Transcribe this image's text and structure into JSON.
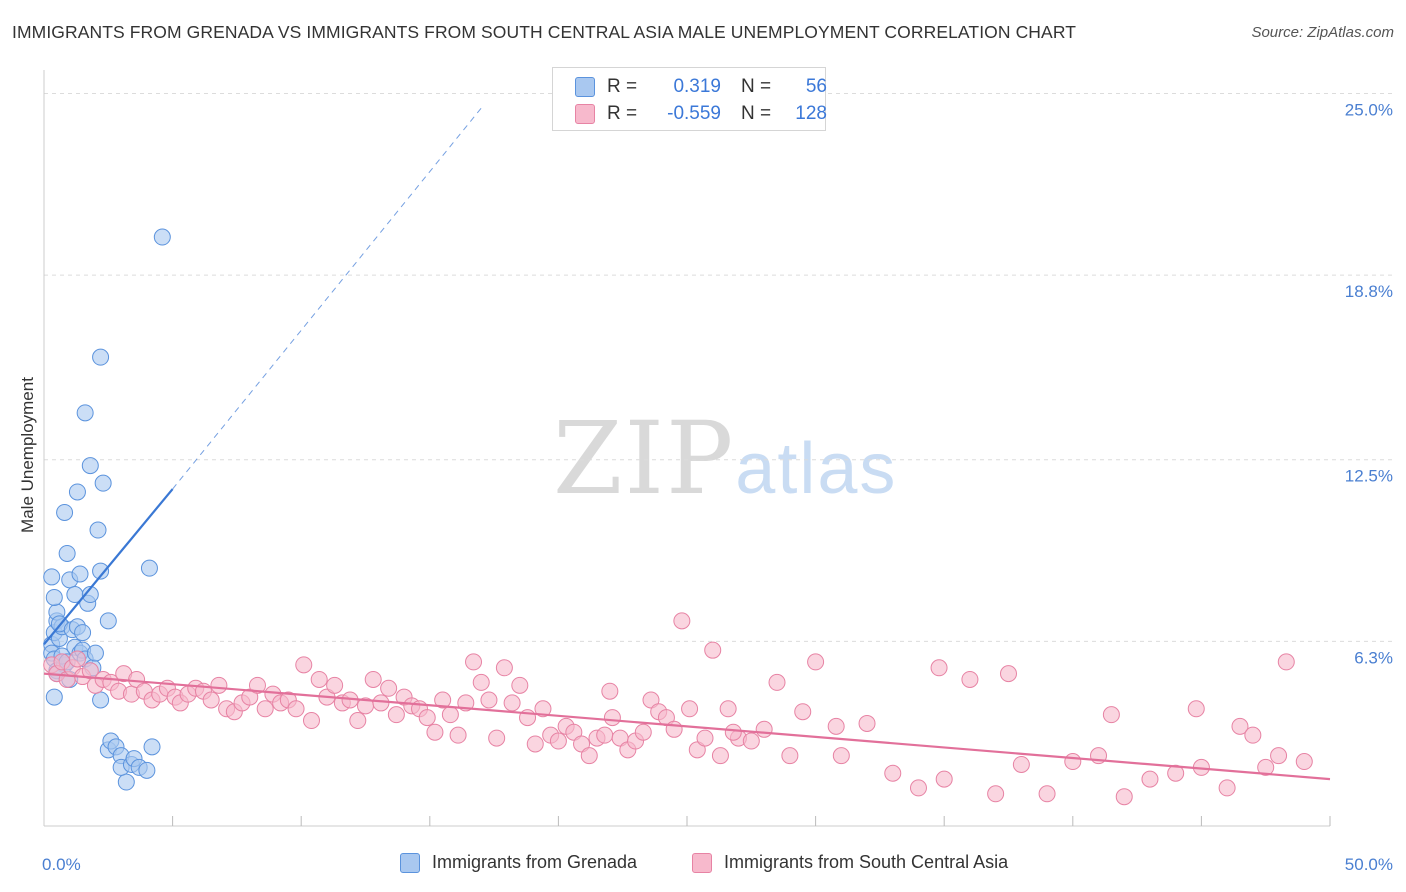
{
  "title": "IMMIGRANTS FROM GRENADA VS IMMIGRANTS FROM SOUTH CENTRAL ASIA MALE UNEMPLOYMENT CORRELATION CHART",
  "source": "Source: ZipAtlas.com",
  "watermark": {
    "zip": "ZIP",
    "atlas": "atlas"
  },
  "legend": {
    "rows": [
      {
        "r_label": "R =",
        "r_value": "0.319",
        "n_label": "N =",
        "n_value": "56",
        "color": "#a9c8f0"
      },
      {
        "r_label": "R =",
        "r_value": "-0.559",
        "n_label": "N =",
        "n_value": "128",
        "color": "#f7b9cc"
      }
    ]
  },
  "bottom_legend": [
    {
      "label": "Immigrants from Grenada",
      "color": "#a9c8f0"
    },
    {
      "label": "Immigrants from South Central Asia",
      "color": "#f7b9cc"
    }
  ],
  "chart_data": {
    "type": "scatter",
    "title": "IMMIGRANTS FROM GRENADA VS IMMIGRANTS FROM SOUTH CENTRAL ASIA MALE UNEMPLOYMENT CORRELATION CHART",
    "xlabel": "",
    "ylabel": "Male Unemployment",
    "xlim": [
      0,
      50
    ],
    "ylim": [
      0,
      25.8
    ],
    "x_tick_labels": [
      {
        "value": 0,
        "label": "0.0%"
      },
      {
        "value": 50,
        "label": "50.0%"
      }
    ],
    "y_tick_labels": [
      {
        "value": 6.3,
        "label": "6.3%"
      },
      {
        "value": 12.5,
        "label": "12.5%"
      },
      {
        "value": 18.8,
        "label": "18.8%"
      },
      {
        "value": 25.0,
        "label": "25.0%"
      }
    ],
    "grid": true,
    "legend_position": "top-center",
    "series": [
      {
        "name": "Immigrants from Grenada",
        "color": "#a9c8f0",
        "stroke": "#5b93dd",
        "trend": {
          "x": [
            0.0,
            5.0
          ],
          "y": [
            6.2,
            11.5
          ],
          "extend_to": [
            17.0,
            24.5
          ],
          "color": "#3a78d4"
        },
        "points": [
          [
            0.3,
            6.2
          ],
          [
            0.3,
            5.9
          ],
          [
            0.4,
            6.6
          ],
          [
            0.5,
            7.0
          ],
          [
            0.4,
            5.7
          ],
          [
            0.6,
            6.4
          ],
          [
            0.5,
            5.3
          ],
          [
            0.7,
            6.8
          ],
          [
            0.8,
            5.5
          ],
          [
            0.3,
            8.5
          ],
          [
            0.5,
            7.3
          ],
          [
            0.4,
            7.8
          ],
          [
            0.6,
            6.9
          ],
          [
            0.9,
            9.3
          ],
          [
            0.8,
            10.7
          ],
          [
            1.0,
            8.4
          ],
          [
            1.1,
            6.7
          ],
          [
            1.2,
            7.9
          ],
          [
            1.3,
            6.8
          ],
          [
            1.4,
            8.6
          ],
          [
            0.7,
            5.8
          ],
          [
            0.5,
            5.2
          ],
          [
            0.9,
            5.6
          ],
          [
            1.0,
            5.0
          ],
          [
            1.2,
            6.1
          ],
          [
            1.4,
            5.9
          ],
          [
            1.5,
            6.0
          ],
          [
            1.6,
            5.7
          ],
          [
            0.4,
            4.4
          ],
          [
            1.7,
            7.6
          ],
          [
            1.8,
            7.9
          ],
          [
            1.5,
            6.6
          ],
          [
            1.9,
            5.4
          ],
          [
            2.0,
            5.9
          ],
          [
            2.2,
            4.3
          ],
          [
            1.3,
            11.4
          ],
          [
            1.6,
            14.1
          ],
          [
            1.8,
            12.3
          ],
          [
            2.1,
            10.1
          ],
          [
            2.5,
            2.6
          ],
          [
            2.6,
            2.9
          ],
          [
            2.8,
            2.7
          ],
          [
            3.0,
            2.4
          ],
          [
            3.2,
            1.5
          ],
          [
            3.0,
            2.0
          ],
          [
            3.4,
            2.1
          ],
          [
            3.5,
            2.3
          ],
          [
            3.7,
            2.0
          ],
          [
            4.0,
            1.9
          ],
          [
            4.2,
            2.7
          ],
          [
            2.2,
            8.7
          ],
          [
            2.3,
            11.7
          ],
          [
            2.2,
            16.0
          ],
          [
            4.1,
            8.8
          ],
          [
            4.6,
            20.1
          ],
          [
            2.5,
            7.0
          ]
        ]
      },
      {
        "name": "Immigrants from South Central Asia",
        "color": "#f7b9cc",
        "stroke": "#e783a4",
        "trend": {
          "x": [
            0.0,
            50.0
          ],
          "y": [
            5.2,
            1.6
          ],
          "color": "#e2709a"
        },
        "points": [
          [
            0.3,
            5.5
          ],
          [
            0.5,
            5.2
          ],
          [
            0.7,
            5.6
          ],
          [
            0.9,
            5.0
          ],
          [
            1.1,
            5.4
          ],
          [
            1.3,
            5.7
          ],
          [
            1.5,
            5.1
          ],
          [
            1.8,
            5.3
          ],
          [
            2.0,
            4.8
          ],
          [
            2.3,
            5.0
          ],
          [
            2.6,
            4.9
          ],
          [
            2.9,
            4.6
          ],
          [
            3.1,
            5.2
          ],
          [
            3.4,
            4.5
          ],
          [
            3.6,
            5.0
          ],
          [
            3.9,
            4.6
          ],
          [
            4.2,
            4.3
          ],
          [
            4.5,
            4.5
          ],
          [
            4.8,
            4.7
          ],
          [
            5.1,
            4.4
          ],
          [
            5.3,
            4.2
          ],
          [
            5.6,
            4.5
          ],
          [
            5.9,
            4.7
          ],
          [
            6.2,
            4.6
          ],
          [
            6.5,
            4.3
          ],
          [
            6.8,
            4.8
          ],
          [
            7.1,
            4.0
          ],
          [
            7.4,
            3.9
          ],
          [
            7.7,
            4.2
          ],
          [
            8.0,
            4.4
          ],
          [
            8.3,
            4.8
          ],
          [
            8.6,
            4.0
          ],
          [
            8.9,
            4.5
          ],
          [
            9.2,
            4.2
          ],
          [
            9.5,
            4.3
          ],
          [
            9.8,
            4.0
          ],
          [
            10.1,
            5.5
          ],
          [
            10.4,
            3.6
          ],
          [
            10.7,
            5.0
          ],
          [
            11.0,
            4.4
          ],
          [
            11.3,
            4.8
          ],
          [
            11.6,
            4.2
          ],
          [
            11.9,
            4.3
          ],
          [
            12.2,
            3.6
          ],
          [
            12.5,
            4.1
          ],
          [
            12.8,
            5.0
          ],
          [
            13.1,
            4.2
          ],
          [
            13.4,
            4.7
          ],
          [
            13.7,
            3.8
          ],
          [
            14.0,
            4.4
          ],
          [
            14.3,
            4.1
          ],
          [
            14.6,
            4.0
          ],
          [
            14.9,
            3.7
          ],
          [
            15.2,
            3.2
          ],
          [
            15.5,
            4.3
          ],
          [
            15.8,
            3.8
          ],
          [
            16.1,
            3.1
          ],
          [
            16.4,
            4.2
          ],
          [
            16.7,
            5.6
          ],
          [
            17.0,
            4.9
          ],
          [
            17.3,
            4.3
          ],
          [
            17.6,
            3.0
          ],
          [
            17.9,
            5.4
          ],
          [
            18.2,
            4.2
          ],
          [
            18.5,
            4.8
          ],
          [
            18.8,
            3.7
          ],
          [
            19.1,
            2.8
          ],
          [
            19.4,
            4.0
          ],
          [
            19.7,
            3.1
          ],
          [
            20.0,
            2.9
          ],
          [
            20.3,
            3.4
          ],
          [
            20.6,
            3.2
          ],
          [
            20.9,
            2.8
          ],
          [
            21.2,
            2.4
          ],
          [
            21.5,
            3.0
          ],
          [
            21.8,
            3.1
          ],
          [
            22.1,
            3.7
          ],
          [
            22.4,
            3.0
          ],
          [
            22.7,
            2.6
          ],
          [
            23.0,
            2.9
          ],
          [
            23.3,
            3.2
          ],
          [
            23.6,
            4.3
          ],
          [
            23.9,
            3.9
          ],
          [
            24.2,
            3.7
          ],
          [
            24.5,
            3.3
          ],
          [
            24.8,
            7.0
          ],
          [
            25.1,
            4.0
          ],
          [
            25.4,
            2.6
          ],
          [
            25.7,
            3.0
          ],
          [
            26.0,
            6.0
          ],
          [
            26.3,
            2.4
          ],
          [
            26.6,
            4.0
          ],
          [
            27.0,
            3.0
          ],
          [
            27.5,
            2.9
          ],
          [
            28.0,
            3.3
          ],
          [
            28.5,
            4.9
          ],
          [
            29.0,
            2.4
          ],
          [
            29.5,
            3.9
          ],
          [
            30.0,
            5.6
          ],
          [
            31.0,
            2.4
          ],
          [
            32.0,
            3.5
          ],
          [
            33.0,
            1.8
          ],
          [
            34.0,
            1.3
          ],
          [
            35.0,
            1.6
          ],
          [
            36.0,
            5.0
          ],
          [
            37.0,
            1.1
          ],
          [
            38.0,
            2.1
          ],
          [
            39.0,
            1.1
          ],
          [
            40.0,
            2.2
          ],
          [
            41.0,
            2.4
          ],
          [
            42.0,
            1.0
          ],
          [
            43.0,
            1.6
          ],
          [
            44.0,
            1.8
          ],
          [
            45.0,
            2.0
          ],
          [
            46.0,
            1.3
          ],
          [
            46.5,
            3.4
          ],
          [
            47.0,
            3.1
          ],
          [
            47.5,
            2.0
          ],
          [
            48.0,
            2.4
          ],
          [
            49.0,
            2.2
          ],
          [
            22.0,
            4.6
          ],
          [
            26.8,
            3.2
          ],
          [
            30.8,
            3.4
          ],
          [
            34.8,
            5.4
          ],
          [
            37.5,
            5.2
          ],
          [
            41.5,
            3.8
          ],
          [
            44.8,
            4.0
          ],
          [
            48.3,
            5.6
          ]
        ]
      }
    ]
  }
}
